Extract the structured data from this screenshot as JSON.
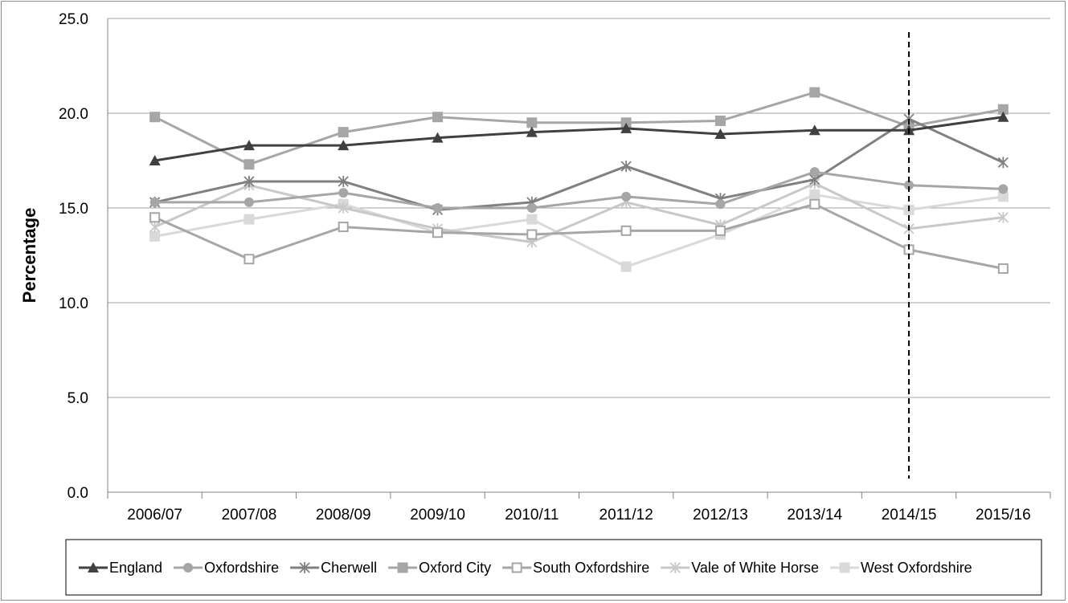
{
  "chart_data": {
    "type": "line",
    "title": "",
    "xlabel": "",
    "ylabel": "Percentage",
    "ylim": [
      0,
      25
    ],
    "yticks": [
      "0.0",
      "5.0",
      "10.0",
      "15.0",
      "20.0",
      "25.0"
    ],
    "grid": "horizontal",
    "legend_position": "bottom",
    "marker_line_at": "2014/15",
    "categories": [
      "2006/07",
      "2007/08",
      "2008/09",
      "2009/10",
      "2010/11",
      "2011/12",
      "2012/13",
      "2013/14",
      "2014/15",
      "2015/16"
    ],
    "series": [
      {
        "name": "England",
        "color": "#404040",
        "marker": "triangle",
        "values": [
          17.5,
          18.3,
          18.3,
          18.7,
          19.0,
          19.2,
          18.9,
          19.1,
          19.1,
          19.8
        ]
      },
      {
        "name": "Oxfordshire",
        "color": "#a6a6a6",
        "marker": "circle",
        "values": [
          15.3,
          15.3,
          15.8,
          15.0,
          15.0,
          15.6,
          15.2,
          16.9,
          16.2,
          16.0
        ]
      },
      {
        "name": "Cherwell",
        "color": "#808080",
        "marker": "asterisk",
        "values": [
          15.3,
          16.4,
          16.4,
          14.9,
          15.3,
          17.2,
          15.5,
          16.5,
          19.7,
          17.4
        ]
      },
      {
        "name": "Oxford City",
        "color": "#a6a6a6",
        "marker": "square",
        "values": [
          19.8,
          17.3,
          19.0,
          19.8,
          19.5,
          19.5,
          19.6,
          21.1,
          19.3,
          20.2
        ]
      },
      {
        "name": "South Oxfordshire",
        "color": "#a6a6a6",
        "marker": "square-open",
        "values": [
          14.5,
          12.3,
          14.0,
          13.7,
          13.6,
          13.8,
          13.8,
          15.2,
          12.8,
          11.8
        ]
      },
      {
        "name": "Vale of White Horse",
        "color": "#c8c8c8",
        "marker": "asterisk",
        "values": [
          14.0,
          16.2,
          15.0,
          13.9,
          13.2,
          15.3,
          14.1,
          16.3,
          13.9,
          14.5
        ]
      },
      {
        "name": "West Oxfordshire",
        "color": "#d9d9d9",
        "marker": "square",
        "values": [
          13.5,
          14.4,
          15.2,
          13.7,
          14.4,
          11.9,
          13.6,
          15.7,
          14.9,
          15.6
        ]
      }
    ]
  }
}
